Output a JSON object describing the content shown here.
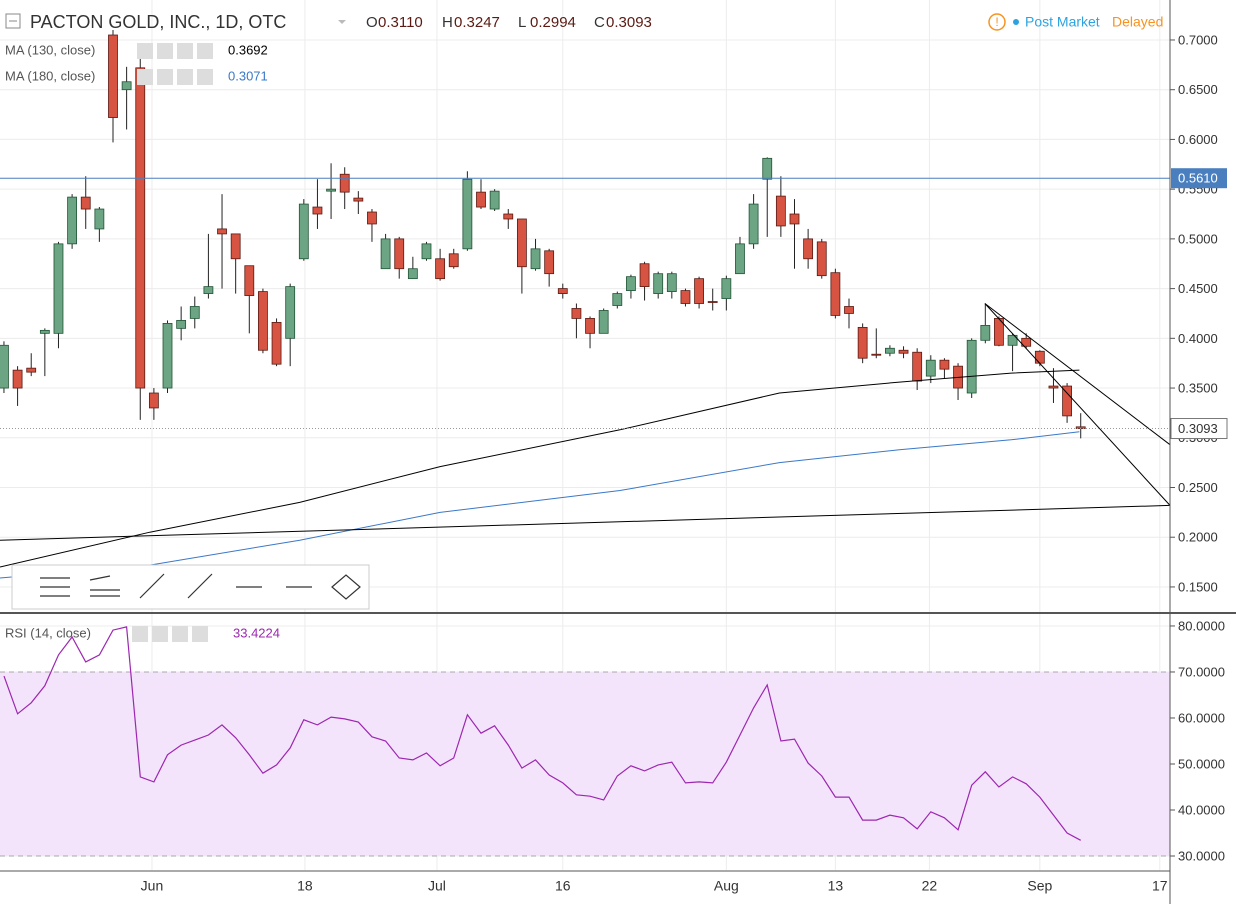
{
  "chart_data": [
    {
      "type": "candlestick",
      "symbol": "PACTON GOLD, INC., 1D, OTC",
      "ohlc_header": [
        {
          "key": "O",
          "value": "0.3110"
        },
        {
          "key": "H",
          "value": "0.3247"
        },
        {
          "key": "L",
          "value": "0.2994"
        },
        {
          "key": "C",
          "value": "0.3093"
        }
      ],
      "status": "Post Market",
      "delay": "Delayed",
      "up_color": "#6ba583",
      "down_color": "#d75442",
      "open": [
        0.35,
        0.368,
        0.37,
        0.405,
        0.405,
        0.495,
        0.542,
        0.51,
        0.705,
        0.65,
        0.672,
        0.345,
        0.35,
        0.41,
        0.42,
        0.445,
        0.51,
        0.505,
        0.473,
        0.447,
        0.416,
        0.4,
        0.48,
        0.532,
        0.548,
        0.565,
        0.541,
        0.527,
        0.47,
        0.5,
        0.46,
        0.48,
        0.48,
        0.485,
        0.49,
        0.547,
        0.53,
        0.525,
        0.52,
        0.47,
        0.488,
        0.45,
        0.43,
        0.42,
        0.405,
        0.433,
        0.448,
        0.475,
        0.445,
        0.447,
        0.448,
        0.46,
        0.437,
        0.44,
        0.465,
        0.495,
        0.56,
        0.543,
        0.525,
        0.5,
        0.497,
        0.466,
        0.432,
        0.411,
        0.384,
        0.385,
        0.388,
        0.386,
        0.362,
        0.378,
        0.372,
        0.345,
        0.398,
        0.42,
        0.393,
        0.4,
        0.387,
        0.352,
        0.352,
        0.311
      ],
      "high": [
        0.397,
        0.372,
        0.385,
        0.41,
        0.497,
        0.545,
        0.563,
        0.532,
        0.71,
        0.673,
        0.695,
        0.35,
        0.418,
        0.432,
        0.442,
        0.505,
        0.545,
        0.505,
        0.473,
        0.45,
        0.42,
        0.455,
        0.54,
        0.56,
        0.576,
        0.572,
        0.548,
        0.53,
        0.505,
        0.502,
        0.482,
        0.497,
        0.49,
        0.49,
        0.568,
        0.56,
        0.55,
        0.53,
        0.52,
        0.5,
        0.49,
        0.455,
        0.435,
        0.422,
        0.43,
        0.447,
        0.464,
        0.477,
        0.467,
        0.467,
        0.45,
        0.462,
        0.45,
        0.463,
        0.502,
        0.545,
        0.582,
        0.563,
        0.54,
        0.51,
        0.5,
        0.47,
        0.44,
        0.415,
        0.41,
        0.393,
        0.392,
        0.39,
        0.383,
        0.38,
        0.375,
        0.4,
        0.435,
        0.422,
        0.405,
        0.405,
        0.388,
        0.37,
        0.355,
        0.3247
      ],
      "low": [
        0.345,
        0.332,
        0.362,
        0.362,
        0.39,
        0.49,
        0.51,
        0.497,
        0.597,
        0.61,
        0.318,
        0.318,
        0.345,
        0.398,
        0.41,
        0.44,
        0.45,
        0.445,
        0.405,
        0.385,
        0.372,
        0.372,
        0.478,
        0.51,
        0.52,
        0.53,
        0.525,
        0.497,
        0.47,
        0.46,
        0.46,
        0.478,
        0.458,
        0.47,
        0.488,
        0.53,
        0.528,
        0.51,
        0.445,
        0.468,
        0.452,
        0.44,
        0.4,
        0.39,
        0.405,
        0.43,
        0.44,
        0.438,
        0.44,
        0.44,
        0.432,
        0.43,
        0.428,
        0.428,
        0.465,
        0.49,
        0.502,
        0.502,
        0.47,
        0.47,
        0.46,
        0.42,
        0.41,
        0.375,
        0.38,
        0.382,
        0.38,
        0.348,
        0.355,
        0.36,
        0.338,
        0.34,
        0.395,
        0.392,
        0.367,
        0.39,
        0.372,
        0.335,
        0.315,
        0.2994
      ],
      "close": [
        0.393,
        0.35,
        0.366,
        0.408,
        0.495,
        0.542,
        0.53,
        0.53,
        0.622,
        0.658,
        0.35,
        0.33,
        0.415,
        0.418,
        0.432,
        0.452,
        0.505,
        0.48,
        0.443,
        0.388,
        0.374,
        0.452,
        0.535,
        0.525,
        0.55,
        0.547,
        0.538,
        0.515,
        0.5,
        0.47,
        0.47,
        0.495,
        0.46,
        0.472,
        0.56,
        0.532,
        0.548,
        0.52,
        0.472,
        0.49,
        0.465,
        0.445,
        0.42,
        0.405,
        0.428,
        0.445,
        0.462,
        0.452,
        0.465,
        0.465,
        0.435,
        0.435,
        0.436,
        0.46,
        0.495,
        0.535,
        0.581,
        0.513,
        0.515,
        0.48,
        0.463,
        0.423,
        0.425,
        0.38,
        0.383,
        0.39,
        0.385,
        0.357,
        0.378,
        0.369,
        0.35,
        0.398,
        0.413,
        0.393,
        0.403,
        0.392,
        0.375,
        0.35,
        0.322,
        0.3093
      ],
      "series": [
        {
          "name": "MA (130, close)",
          "color": "#000000",
          "last_value": "0.3692",
          "x": [
            -0.29,
            10.7,
            21.7,
            32.0,
            45.2,
            56.9,
            65.7,
            73.9,
            78.9
          ],
          "values": [
            0.17,
            0.205,
            0.235,
            0.271,
            0.308,
            0.345,
            0.356,
            0.365,
            0.368
          ]
        },
        {
          "name": "MA (180, close)",
          "color": "#3a78c9",
          "last_value": "0.3071",
          "x": [
            -0.29,
            10.7,
            21.7,
            32.0,
            45.2,
            56.9,
            65.7,
            73.9,
            78.9
          ],
          "values": [
            0.159,
            0.172,
            0.197,
            0.225,
            0.247,
            0.275,
            0.288,
            0.298,
            0.306
          ]
        }
      ],
      "trendlines": [
        {
          "color": "#000000",
          "x": [
            -0.29,
            85.55
          ],
          "values": [
            0.197,
            0.232
          ]
        },
        {
          "color": "#000000",
          "x": [
            71.97,
            85.55
          ],
          "values": [
            0.435,
            0.232
          ]
        },
        {
          "color": "#000000",
          "x": [
            71.97,
            85.55
          ],
          "values": [
            0.435,
            0.293
          ]
        }
      ],
      "hline": {
        "value": 0.561,
        "label": "0.5610",
        "color": "#4a7fbf"
      },
      "last_price": {
        "value": 0.3093,
        "label": "0.3093"
      },
      "xlim": [
        -0.29,
        85.55
      ],
      "xticks": [
        {
          "value": 10.86,
          "label": "Jun"
        },
        {
          "value": 22.08,
          "label": "18"
        },
        {
          "value": 31.77,
          "label": "Jul"
        },
        {
          "value": 41.0,
          "label": "16"
        },
        {
          "value": 53.0,
          "label": "Aug"
        },
        {
          "value": 61.0,
          "label": "13"
        },
        {
          "value": 67.9,
          "label": "22"
        },
        {
          "value": 76.0,
          "label": "Sep"
        },
        {
          "value": 84.8,
          "label": "17"
        }
      ],
      "ylim": [
        0.1248,
        0.7402
      ],
      "yticks": [
        {
          "value": 0.15,
          "label": "0.1500"
        },
        {
          "value": 0.2,
          "label": "0.2000"
        },
        {
          "value": 0.25,
          "label": "0.2500"
        },
        {
          "value": 0.3,
          "label": "0.3000"
        },
        {
          "value": 0.35,
          "label": "0.3500"
        },
        {
          "value": 0.4,
          "label": "0.4000"
        },
        {
          "value": 0.45,
          "label": "0.4500"
        },
        {
          "value": 0.5,
          "label": "0.5000"
        },
        {
          "value": 0.55,
          "label": "0.5500"
        },
        {
          "value": 0.6,
          "label": "0.6000"
        },
        {
          "value": 0.65,
          "label": "0.6500"
        },
        {
          "value": 0.7,
          "label": "0.7000"
        }
      ],
      "grid": true
    },
    {
      "type": "line",
      "series": [
        {
          "name": "RSI (14, close)",
          "color": "#9c27b0",
          "last_value": "33.4224",
          "values": [
            69.1,
            60.9,
            63.3,
            67,
            73.7,
            77.6,
            72.2,
            73.7,
            79.1,
            79.8,
            47.2,
            46.1,
            52,
            54.1,
            55.2,
            56.3,
            58.5,
            55.7,
            52,
            48,
            49.8,
            53.5,
            59.6,
            58.5,
            60.2,
            59.8,
            59.1,
            55.9,
            55,
            51.3,
            50.9,
            52.4,
            49.6,
            51.3,
            60.7,
            56.7,
            58.3,
            54.1,
            49.1,
            50.9,
            47.6,
            45.9,
            43.3,
            43,
            42.2,
            47.4,
            49.6,
            48.5,
            49.8,
            50.4,
            45.9,
            46.1,
            45.9,
            50.4,
            56.3,
            62.2,
            67.2,
            55,
            55.4,
            50.2,
            47.4,
            42.8,
            42.8,
            37.8,
            37.8,
            38.9,
            38.3,
            35.9,
            39.6,
            38.3,
            35.7,
            45.4,
            48.3,
            45,
            47.2,
            45.7,
            42.8,
            38.9,
            35,
            33.4224
          ]
        }
      ],
      "band": [
        30,
        70
      ],
      "band_color": "#f3e4fb",
      "xlim": [
        -0.29,
        85.55
      ],
      "ylim": [
        26.96,
        82.6
      ],
      "yticks": [
        {
          "value": 30,
          "label": "30.0000"
        },
        {
          "value": 40,
          "label": "40.0000"
        },
        {
          "value": 50,
          "label": "50.0000"
        },
        {
          "value": 60,
          "label": "60.0000"
        },
        {
          "value": 70,
          "label": "70.0000"
        },
        {
          "value": 80,
          "label": "80.0000"
        }
      ],
      "grid": true
    }
  ]
}
